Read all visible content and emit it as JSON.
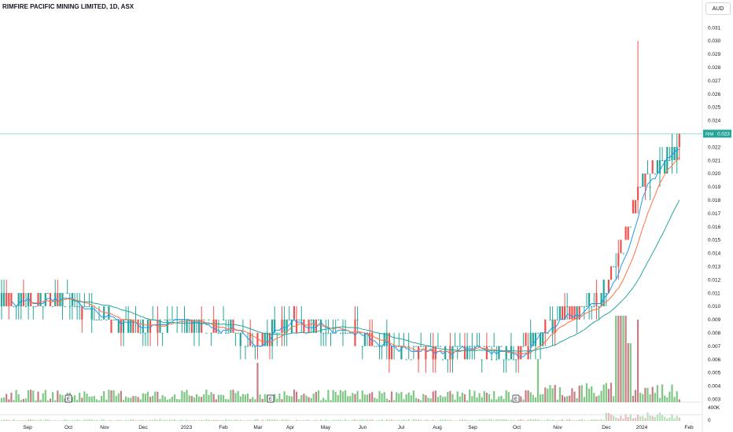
{
  "header": {
    "title": "RIMFIRE PACIFIC MINING LIMITED, 1D, ASX",
    "currency": "AUD"
  },
  "price_tag": {
    "symbol": "RIM",
    "value": "0.023"
  },
  "colors": {
    "up": "#26a69a",
    "down": "#ef5350",
    "ma_fast": "#2196f3",
    "ma_mid": "#ff7043",
    "ma_slow": "#26a69a",
    "vol_up": "#7fc785",
    "vol_down": "#c47f86",
    "price_line": "#26a69a"
  },
  "chart_data": {
    "type": "candlestick",
    "title": "RIMFIRE PACIFIC MINING LIMITED, 1D, ASX",
    "currency": "AUD",
    "last_price": 0.023,
    "y_ticks": [
      "0.031",
      "0.030",
      "0.029",
      "0.028",
      "0.027",
      "0.026",
      "0.025",
      "0.024",
      "0.023",
      "0.022",
      "0.021",
      "0.020",
      "0.019",
      "0.018",
      "0.017",
      "0.016",
      "0.015",
      "0.014",
      "0.013",
      "0.012",
      "0.011",
      "0.010",
      "0.009",
      "0.008",
      "0.007",
      "0.006",
      "0.005",
      "0.004",
      "0.003"
    ],
    "ylim": [
      0.0025,
      0.032
    ],
    "x_ticks": [
      "Sep",
      "Oct",
      "Nov",
      "Dec",
      "2023",
      "Feb",
      "Mar",
      "Apr",
      "May",
      "Jun",
      "Jul",
      "Aug",
      "Sep",
      "Oct",
      "Nov",
      "Dec",
      "2024",
      "Feb"
    ],
    "volume_ticks": [
      "400K",
      "0"
    ],
    "earnings_markers": [
      "E",
      "E",
      "E"
    ],
    "price_anchors": [
      [
        "Sep",
        0.0105
      ],
      [
        "Oct",
        0.0105
      ],
      [
        "Nov",
        0.009
      ],
      [
        "Dec",
        0.0085
      ],
      [
        "2023",
        0.0088
      ],
      [
        "Feb",
        0.0085
      ],
      [
        "Mar",
        0.007
      ],
      [
        "Apr",
        0.009
      ],
      [
        "May",
        0.0082
      ],
      [
        "Jun",
        0.0078
      ],
      [
        "Jul",
        0.0065
      ],
      [
        "Aug",
        0.0068
      ],
      [
        "Sep",
        0.0068
      ],
      [
        "Oct",
        0.0062
      ],
      [
        "Nov",
        0.009
      ],
      [
        "Dec",
        0.011
      ],
      [
        "2024",
        0.019
      ],
      [
        "Feb",
        0.023
      ]
    ],
    "spike_high": 0.03
  }
}
